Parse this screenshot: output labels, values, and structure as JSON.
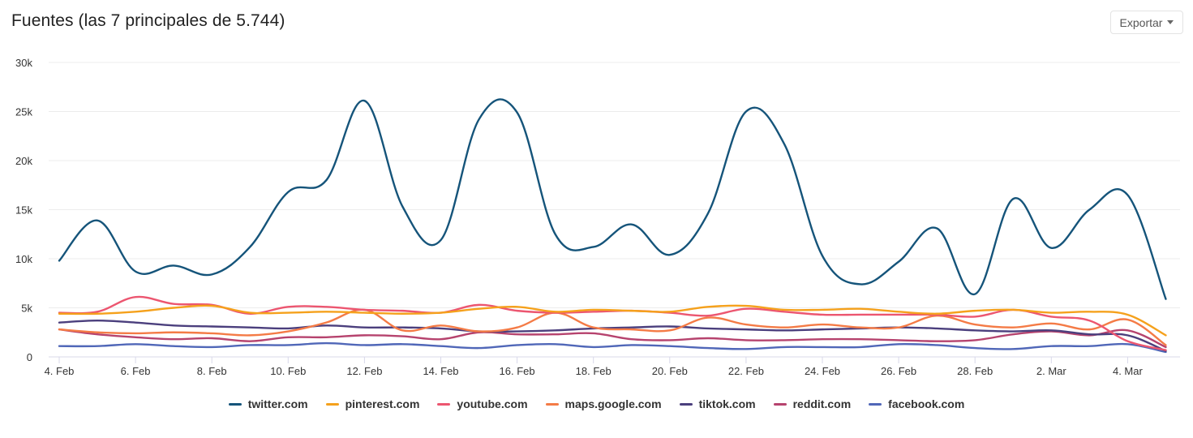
{
  "header": {
    "title": "Fuentes (las 7 principales de 5.744)",
    "export_label": "Exportar"
  },
  "chart_data": {
    "type": "line",
    "title": "Fuentes (las 7 principales de 5.744)",
    "xlabel": "",
    "ylabel": "",
    "ylim": [
      0,
      30000
    ],
    "yticks": [
      "0",
      "5k",
      "10k",
      "15k",
      "20k",
      "25k",
      "30k"
    ],
    "xticks": [
      "4. Feb",
      "6. Feb",
      "8. Feb",
      "10. Feb",
      "12. Feb",
      "14. Feb",
      "16. Feb",
      "18. Feb",
      "20. Feb",
      "22. Feb",
      "24. Feb",
      "26. Feb",
      "28. Feb",
      "2. Mar",
      "4. Mar"
    ],
    "grid": true,
    "legend_position": "bottom",
    "x": [
      "4 Feb",
      "5 Feb",
      "6 Feb",
      "7 Feb",
      "8 Feb",
      "9 Feb",
      "10 Feb",
      "11 Feb",
      "12 Feb",
      "13 Feb",
      "14 Feb",
      "15 Feb",
      "16 Feb",
      "17 Feb",
      "18 Feb",
      "19 Feb",
      "20 Feb",
      "21 Feb",
      "22 Feb",
      "23 Feb",
      "24 Feb",
      "25 Feb",
      "26 Feb",
      "27 Feb",
      "28 Feb",
      "1 Mar",
      "2 Mar",
      "3 Mar",
      "4 Mar",
      "5 Mar"
    ],
    "series": [
      {
        "name": "twitter.com",
        "color": "#15547a",
        "values": [
          9800,
          13900,
          8700,
          9300,
          8400,
          11200,
          16800,
          18000,
          26100,
          15300,
          11900,
          24200,
          24900,
          12500,
          11200,
          13500,
          10400,
          14600,
          25000,
          21700,
          10300,
          7400,
          9700,
          13100,
          6400,
          16100,
          11100,
          15000,
          16500,
          5900
        ]
      },
      {
        "name": "pinterest.com",
        "color": "#f5a11c",
        "values": [
          4400,
          4400,
          4600,
          5000,
          5200,
          4500,
          4500,
          4600,
          4500,
          4400,
          4500,
          4900,
          5100,
          4600,
          4800,
          4700,
          4600,
          5100,
          5200,
          4800,
          4800,
          4900,
          4600,
          4400,
          4700,
          4800,
          4500,
          4600,
          4300,
          2200
        ]
      },
      {
        "name": "youtube.com",
        "color": "#ec5670",
        "values": [
          4500,
          4600,
          6100,
          5400,
          5300,
          4400,
          5100,
          5100,
          4800,
          4700,
          4500,
          5300,
          4700,
          4500,
          4600,
          4700,
          4500,
          4200,
          4900,
          4600,
          4300,
          4300,
          4300,
          4300,
          4100,
          4800,
          4100,
          3700,
          1600,
          700
        ]
      },
      {
        "name": "maps.google.com",
        "color": "#f47b46",
        "values": [
          2800,
          2500,
          2400,
          2500,
          2400,
          2200,
          2600,
          3500,
          4800,
          2700,
          3200,
          2600,
          3000,
          4500,
          3000,
          2800,
          2700,
          4000,
          3300,
          3000,
          3300,
          3000,
          3000,
          4200,
          3300,
          3000,
          3400,
          2800,
          3800,
          1200
        ]
      },
      {
        "name": "tiktok.com",
        "color": "#4b3f7d",
        "values": [
          3500,
          3700,
          3500,
          3200,
          3100,
          3000,
          2900,
          3200,
          3000,
          3000,
          2900,
          2600,
          2600,
          2700,
          2900,
          3000,
          3100,
          2900,
          2800,
          2700,
          2800,
          2900,
          3000,
          2900,
          2700,
          2600,
          2700,
          2300,
          2200,
          600
        ]
      },
      {
        "name": "reddit.com",
        "color": "#b6436e",
        "values": [
          2800,
          2300,
          2000,
          1800,
          1900,
          1600,
          2000,
          2000,
          2200,
          2100,
          1800,
          2500,
          2300,
          2300,
          2400,
          1800,
          1700,
          1900,
          1700,
          1700,
          1800,
          1800,
          1700,
          1600,
          1700,
          2300,
          2600,
          2200,
          2700,
          1000
        ]
      },
      {
        "name": "facebook.com",
        "color": "#5067b8",
        "values": [
          1100,
          1100,
          1300,
          1100,
          1000,
          1200,
          1200,
          1400,
          1200,
          1300,
          1100,
          900,
          1200,
          1300,
          1000,
          1200,
          1100,
          900,
          800,
          1000,
          1000,
          1000,
          1300,
          1200,
          900,
          800,
          1100,
          1100,
          1300,
          500
        ]
      }
    ]
  }
}
